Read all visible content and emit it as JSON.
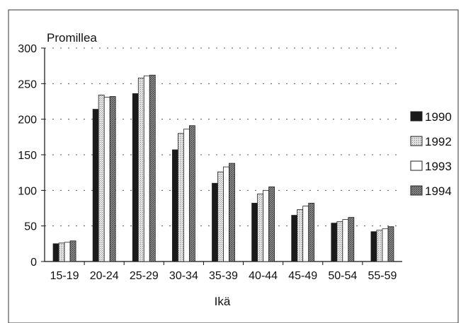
{
  "chart_data": {
    "type": "bar",
    "ylabel": "Promillea",
    "xlabel": "Ikä",
    "ylim": [
      0,
      300
    ],
    "yticks": [
      0,
      50,
      100,
      150,
      200,
      250,
      300
    ],
    "grid": true,
    "legend_position": "right",
    "categories": [
      "15-19",
      "20-24",
      "25-29",
      "30-34",
      "35-39",
      "40-44",
      "45-49",
      "50-54",
      "55-59"
    ],
    "series": [
      {
        "name": "1990",
        "color": "#1a1a1a",
        "pattern": "solid",
        "values": [
          25,
          214,
          236,
          157,
          110,
          82,
          65,
          54,
          42
        ]
      },
      {
        "name": "1992",
        "color": "#d9d9d9",
        "pattern": "light-stipple",
        "values": [
          26,
          234,
          258,
          180,
          126,
          95,
          73,
          56,
          44
        ]
      },
      {
        "name": "1993",
        "color": "#ffffff",
        "pattern": "white",
        "values": [
          27,
          231,
          261,
          186,
          133,
          100,
          78,
          59,
          46
        ]
      },
      {
        "name": "1994",
        "color": "#7a7a7a",
        "pattern": "dark-stipple",
        "values": [
          29,
          232,
          262,
          191,
          138,
          105,
          82,
          62,
          49
        ]
      }
    ]
  }
}
